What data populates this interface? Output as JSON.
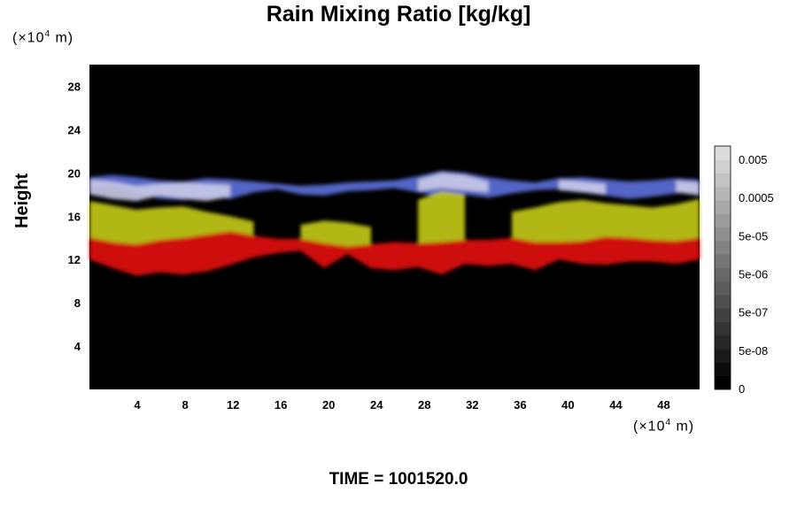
{
  "chart_data": {
    "type": "heatmap",
    "title": "Rain Mixing Ratio [kg/kg]",
    "xlabel": "",
    "ylabel": "Height",
    "x_unit_prefix": "(×10",
    "x_unit_exp": "4",
    "x_unit_suffix": " m)",
    "y_unit_prefix": "(×10",
    "y_unit_exp": "4",
    "y_unit_suffix": " m)",
    "xlim": [
      0,
      51
    ],
    "ylim": [
      0,
      30
    ],
    "x_ticks": [
      4,
      8,
      12,
      16,
      20,
      24,
      28,
      32,
      36,
      40,
      44,
      48
    ],
    "y_ticks": [
      4,
      8,
      12,
      16,
      20,
      24,
      28
    ],
    "background_color": "#000000",
    "layers": [
      {
        "color": "#5a6cd6",
        "bottom": [
          18.6,
          18.8,
          18.2,
          17.6,
          17.5,
          17.8,
          17.6,
          18.2,
          18.5,
          18.0,
          17.9,
          18.3,
          18.4,
          18.6,
          18.2,
          17.8,
          18.0,
          17.7,
          18.1,
          18.4,
          18.5,
          18.2,
          17.9,
          17.6,
          17.8,
          18.1,
          18.3
        ],
        "top": [
          19.6,
          19.8,
          19.6,
          19.3,
          19.2,
          19.5,
          19.4,
          19.2,
          19.0,
          18.8,
          18.9,
          19.1,
          19.2,
          19.3,
          19.7,
          20.2,
          20.0,
          19.6,
          19.3,
          19.1,
          19.5,
          19.6,
          19.4,
          19.2,
          19.3,
          19.5,
          19.4
        ]
      },
      {
        "color": "#c8c8e6",
        "bottom": [
          18.0,
          17.6,
          17.4,
          17.9,
          17.6,
          17.4,
          17.8,
          null,
          null,
          null,
          null,
          null,
          null,
          null,
          18.3,
          18.6,
          18.4,
          18.2,
          null,
          null,
          18.4,
          18.2,
          18.0,
          null,
          null,
          18.2,
          17.9
        ],
        "top": [
          19.4,
          19.2,
          18.8,
          19.0,
          19.1,
          19.0,
          18.9,
          null,
          null,
          null,
          null,
          null,
          null,
          null,
          19.4,
          20.0,
          19.8,
          19.2,
          null,
          null,
          19.4,
          19.2,
          19.0,
          null,
          null,
          19.3,
          19.1
        ]
      },
      {
        "color": "#c0c81a",
        "bottom": [
          14.0,
          13.6,
          13.4,
          13.8,
          14.0,
          14.3,
          14.6,
          14.2,
          null,
          13.9,
          13.5,
          13.2,
          13.4,
          null,
          13.5,
          13.6,
          13.8,
          null,
          14.0,
          13.6,
          13.6,
          13.7,
          14.1,
          14.0,
          13.8,
          13.7,
          14.0
        ],
        "top": [
          17.4,
          17.0,
          16.6,
          16.8,
          16.9,
          16.4,
          16.0,
          15.5,
          null,
          15.2,
          15.6,
          15.4,
          15.0,
          null,
          17.5,
          18.3,
          18.0,
          null,
          16.4,
          16.8,
          17.3,
          17.5,
          17.2,
          17.0,
          16.8,
          17.1,
          17.6
        ]
      },
      {
        "color": "#e01010",
        "bottom": [
          12.0,
          11.2,
          10.5,
          10.8,
          10.6,
          10.9,
          11.5,
          12.2,
          12.6,
          12.8,
          11.2,
          12.5,
          11.2,
          11.0,
          11.3,
          10.6,
          11.6,
          11.4,
          11.6,
          11.0,
          12.0,
          11.6,
          11.5,
          11.8,
          11.8,
          11.6,
          12.0
        ],
        "top": [
          14.0,
          13.6,
          13.4,
          13.8,
          14.0,
          14.3,
          14.6,
          14.2,
          13.9,
          13.9,
          13.5,
          13.2,
          13.4,
          13.6,
          13.5,
          13.6,
          13.8,
          13.8,
          14.0,
          13.6,
          13.6,
          13.7,
          14.1,
          14.0,
          13.8,
          13.7,
          14.0
        ]
      }
    ],
    "colorbar": {
      "labels": [
        "0.005",
        "0.0005",
        "5e-05",
        "5e-06",
        "5e-07",
        "5e-08",
        "0"
      ],
      "colors": [
        "#000000",
        "#0c0c0c",
        "#1a1a1a",
        "#272727",
        "#343434",
        "#414141",
        "#4e4e4e",
        "#5b5b5b",
        "#686868",
        "#757575",
        "#828282",
        "#8f8f8f",
        "#9c9c9c",
        "#a9a9a9",
        "#b6b6b6",
        "#c3c3c3",
        "#d0d0d0",
        "#dcdcdc"
      ]
    }
  },
  "footer": {
    "time_label": "TIME = 1001520.0"
  }
}
